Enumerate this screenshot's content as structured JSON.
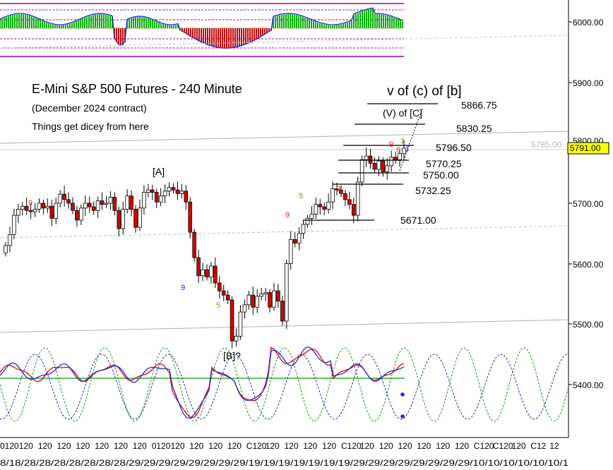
{
  "colors": {
    "bull": "#ffffff",
    "bear": "#d40000",
    "hist_up": "#00b000",
    "hist_down": "#c80000",
    "osc_red": "#e00000",
    "osc_blue": "#1a2fd6",
    "cycle_green": "#1f8f1f",
    "cycle_blue": "#2a2aa0",
    "band": "#a000a0",
    "label_red": "#e02020",
    "label_blue": "#2020cc",
    "label_olive": "#8a8a00",
    "price_box": "#ffff00"
  },
  "chart_data": {
    "type": "candlestick",
    "title": "E-Mini S&P 500 Futures - 240 Minute",
    "subtitle": "(December 2024 contract)",
    "note": "Things get dicey from here",
    "y_axis": {
      "range": [
        5320,
        6035
      ],
      "ticks": [
        "6000.00",
        "5900.00",
        "5800.00",
        "5700.00",
        "5600.00",
        "5500.00",
        "5400.00"
      ]
    },
    "x_tick_labels": [
      "0120",
      "120",
      "120",
      "120",
      "120",
      "120",
      "120",
      "120",
      "0120",
      "120",
      "120",
      "120",
      "120",
      "C120",
      "120",
      "120",
      "120",
      "120",
      "C120",
      "120",
      "120",
      "120",
      "120",
      "120",
      "120",
      "C120",
      "C120",
      "120",
      "C12",
      "12"
    ],
    "x_date_labels": "8/18/28/28/28/28/28/28/28/29/29/29/29/29/29/29/29/19/19/19/19/19/19/19/29/29/29/29/29/29/29/29/10/10/10/10/10/10/1",
    "current_price": "5791.00",
    "reference_price": "5785.00",
    "wave_labels": [
      "[A]",
      "[B]?",
      "v of (c) of [b]",
      "(V) of [C]",
      "9",
      "9",
      "5",
      "9",
      "5",
      "9",
      "9",
      "9",
      "1",
      "1"
    ],
    "levels": [
      {
        "label": "5866.75",
        "value": 5866.75
      },
      {
        "label": "5830.25",
        "value": 5830.25
      },
      {
        "label": "5796.50",
        "value": 5796.5
      },
      {
        "label": "5770.25",
        "value": 5770.25
      },
      {
        "label": "5750.00",
        "value": 5750.0
      },
      {
        "label": "5732.25",
        "value": 5732.25
      },
      {
        "label": "5671.00",
        "value": 5671.0
      }
    ],
    "closes": [
      5630,
      5648,
      5680,
      5690,
      5695,
      5688,
      5686,
      5690,
      5700,
      5692,
      5695,
      5675,
      5700,
      5715,
      5706,
      5700,
      5688,
      5672,
      5692,
      5700,
      5694,
      5688,
      5704,
      5698,
      5700,
      5710,
      5688,
      5658,
      5690,
      5712,
      5690,
      5660,
      5692,
      5718,
      5722,
      5718,
      5702,
      5712,
      5720,
      5726,
      5722,
      5716,
      5720,
      5702,
      5652,
      5610,
      5580,
      5590,
      5578,
      5596,
      5568,
      5555,
      5548,
      5540,
      5472,
      5480,
      5520,
      5532,
      5548,
      5528,
      5546,
      5550,
      5552,
      5528,
      5555,
      5538,
      5505,
      5600,
      5640,
      5634,
      5650,
      5665,
      5675,
      5682,
      5698,
      5694,
      5690,
      5702,
      5724,
      5722,
      5716,
      5706,
      5698,
      5680,
      5735,
      5772,
      5778,
      5766,
      5756,
      5770,
      5752,
      5762,
      5776,
      5772,
      5782,
      5791
    ],
    "cycle_values": [
      "5400.00"
    ]
  }
}
